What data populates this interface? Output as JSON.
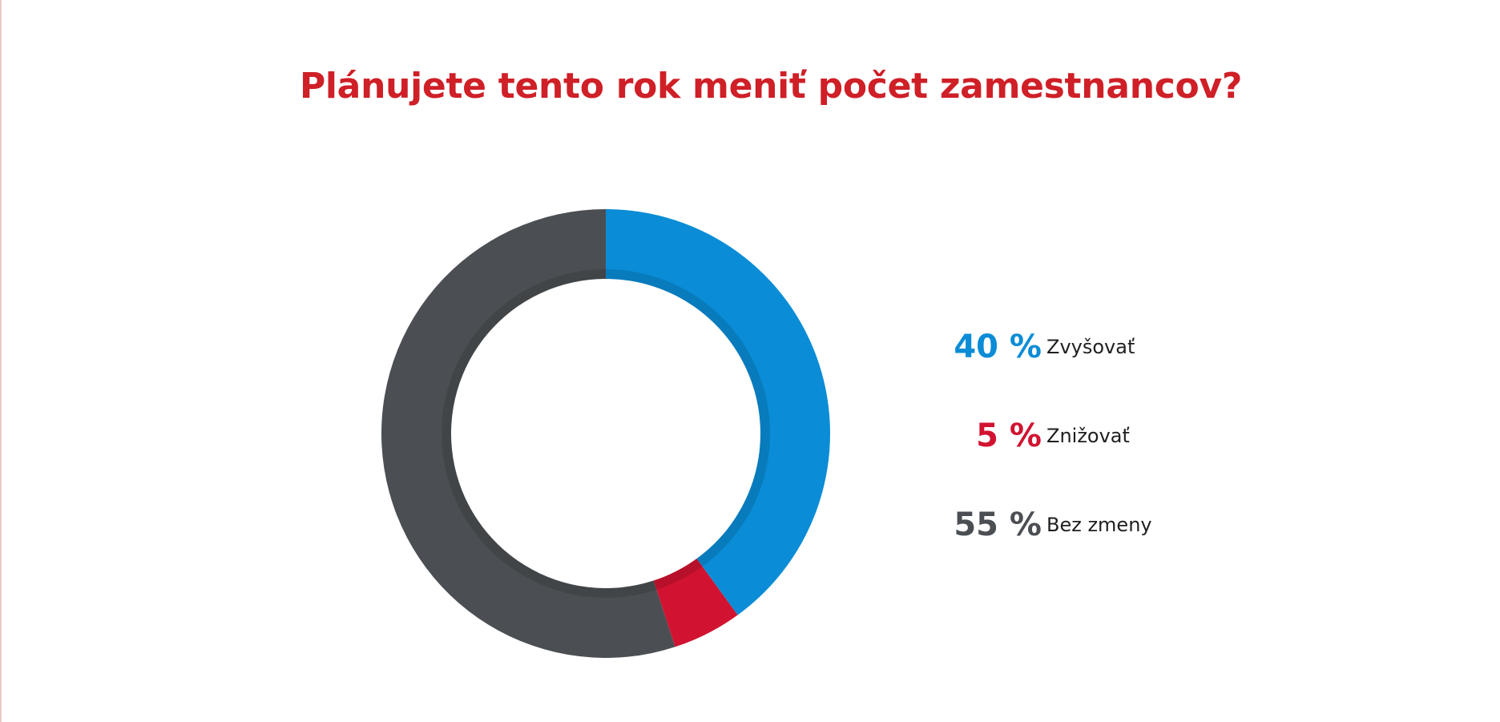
{
  "chart_data": {
    "type": "pie",
    "title": "Plánujete tento rok meniť počet zamestnancov?",
    "categories": [
      "Zvyšovať",
      "Znižovať",
      "Bez zmeny"
    ],
    "values": [
      40,
      5,
      55
    ],
    "value_labels": [
      "40 %",
      "5 %",
      "55 %"
    ],
    "colors": [
      "#0a8cd6",
      "#d11331",
      "#4b4f53"
    ],
    "donut": true,
    "legend_position": "right"
  }
}
